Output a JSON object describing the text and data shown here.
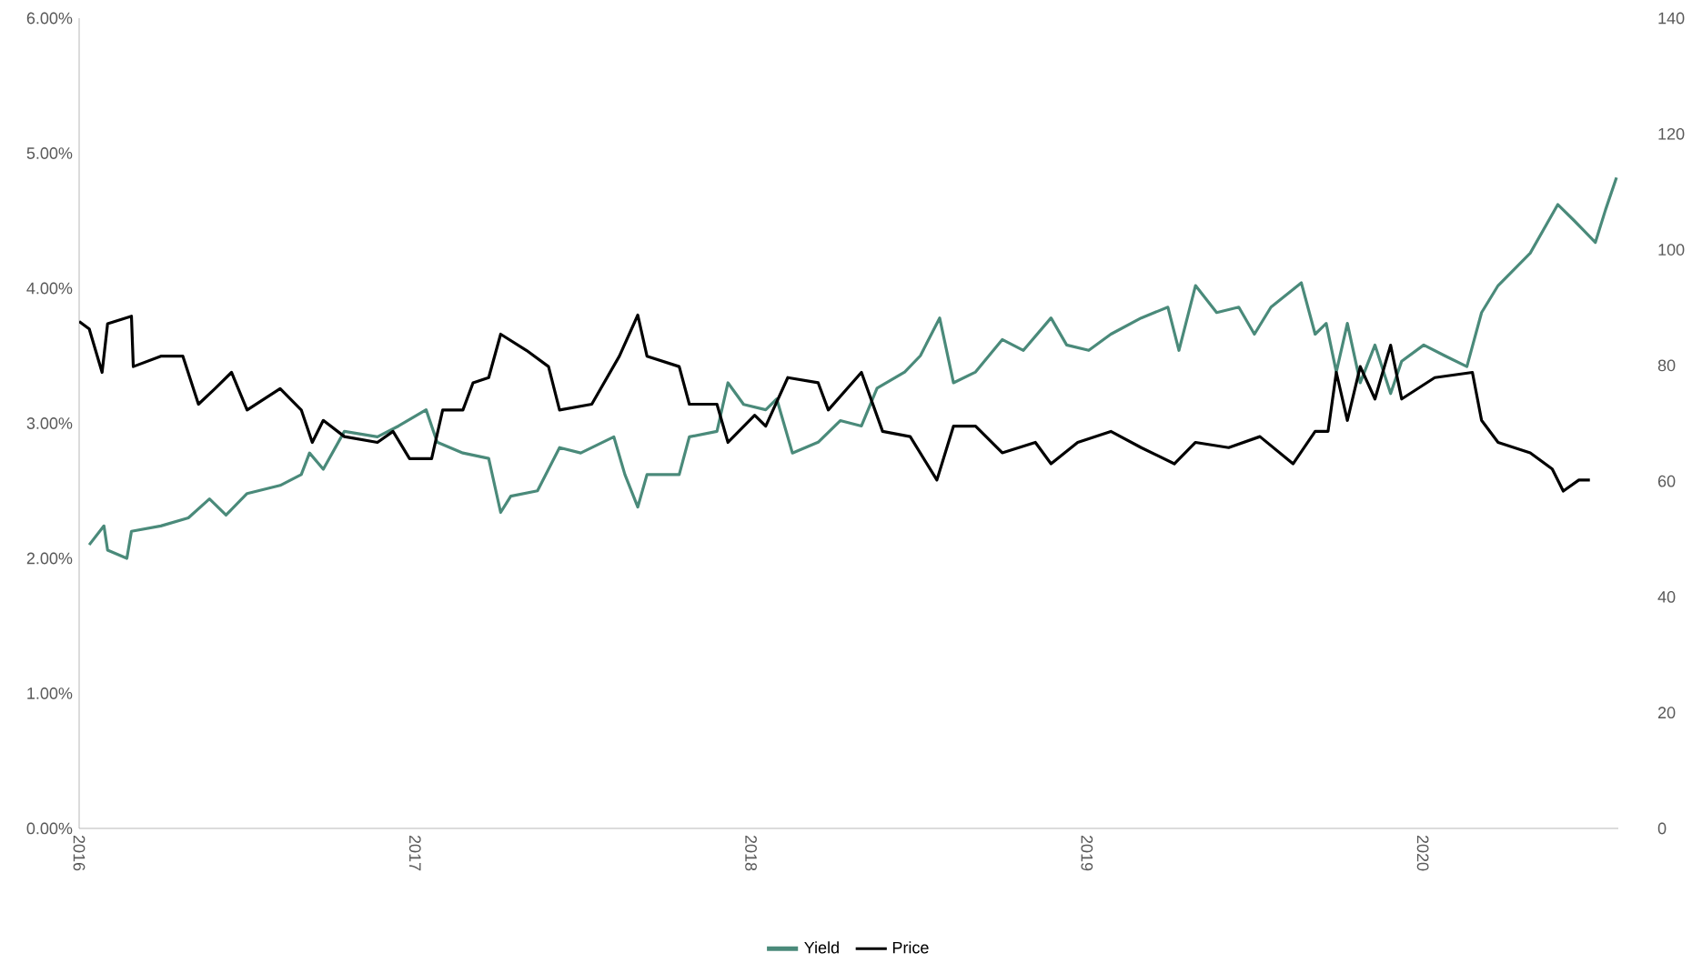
{
  "chart_data": {
    "type": "line",
    "xlim": [
      "2016-01-01",
      "2020-08-01"
    ],
    "xticks": [
      {
        "value": "2016-01-01",
        "label": "2016"
      },
      {
        "value": "2017-01-01",
        "label": "2017"
      },
      {
        "value": "2018-01-01",
        "label": "2018"
      },
      {
        "value": "2019-01-01",
        "label": "2019"
      },
      {
        "value": "2020-01-01",
        "label": "2020"
      }
    ],
    "ylim": [
      0,
      6
    ],
    "yticks": [
      {
        "value": 0,
        "label": "0.00%"
      },
      {
        "value": 1,
        "label": "1.00%"
      },
      {
        "value": 2,
        "label": "2.00%"
      },
      {
        "value": 3,
        "label": "3.00%"
      },
      {
        "value": 4,
        "label": "4.00%"
      },
      {
        "value": 5,
        "label": "5.00%"
      },
      {
        "value": 6,
        "label": "6.00%"
      }
    ],
    "y2lim": [
      0,
      140
    ],
    "y2ticks": [
      0,
      20,
      40,
      60,
      80,
      100,
      120,
      140
    ],
    "legend": "bottom",
    "series": [
      {
        "name": "Yield",
        "color": "#4a8a7a",
        "x": [
          "2016-01-12",
          "2016-01-28",
          "2016-02-01",
          "2016-02-22",
          "2016-02-27",
          "2016-03-30",
          "2016-04-29",
          "2016-05-22",
          "2016-06-09",
          "2016-07-02",
          "2016-08-07",
          "2016-08-30",
          "2016-09-08",
          "2016-09-23",
          "2016-10-16",
          "2016-11-21",
          "2016-12-14",
          "2017-01-13",
          "2017-01-25",
          "2017-02-22",
          "2017-03-22",
          "2017-04-04",
          "2017-04-15",
          "2017-05-14",
          "2017-06-07",
          "2017-06-30",
          "2017-08-05",
          "2017-08-17",
          "2017-08-31",
          "2017-09-10",
          "2017-10-15",
          "2017-10-26",
          "2017-11-25",
          "2017-12-07",
          "2017-12-24",
          "2018-01-17",
          "2018-01-29",
          "2018-02-15",
          "2018-03-15",
          "2018-04-08",
          "2018-05-01",
          "2018-05-18",
          "2018-06-17",
          "2018-07-04",
          "2018-07-25",
          "2018-08-09",
          "2018-09-02",
          "2018-10-01",
          "2018-10-24",
          "2018-11-23",
          "2018-12-10",
          "2019-01-03",
          "2019-01-27",
          "2019-03-01",
          "2019-03-30",
          "2019-04-11",
          "2019-04-29",
          "2019-05-22",
          "2019-06-15",
          "2019-07-02",
          "2019-07-20",
          "2019-08-22",
          "2019-09-06",
          "2019-09-18",
          "2019-09-29",
          "2019-10-11",
          "2019-10-25",
          "2019-11-10",
          "2019-11-27",
          "2019-12-09",
          "2020-01-02",
          "2020-01-25",
          "2020-02-18",
          "2020-03-05",
          "2020-03-23",
          "2020-04-27",
          "2020-05-27",
          "2020-06-14",
          "2020-07-07",
          "2020-07-18",
          "2020-07-30"
        ],
        "values": [
          2.1,
          2.24,
          2.06,
          2.0,
          2.2,
          2.24,
          2.3,
          2.44,
          2.32,
          2.48,
          2.54,
          2.62,
          2.78,
          2.66,
          2.94,
          2.9,
          2.98,
          3.1,
          2.86,
          2.78,
          2.74,
          2.34,
          2.46,
          2.5,
          2.82,
          2.78,
          2.9,
          2.62,
          2.38,
          2.62,
          2.62,
          2.9,
          2.94,
          3.3,
          3.14,
          3.1,
          3.18,
          2.78,
          2.86,
          3.02,
          2.98,
          3.26,
          3.38,
          3.5,
          3.78,
          3.3,
          3.38,
          3.62,
          3.54,
          3.78,
          3.58,
          3.54,
          3.66,
          3.78,
          3.86,
          3.54,
          4.02,
          3.82,
          3.86,
          3.66,
          3.86,
          4.04,
          3.66,
          3.74,
          3.38,
          3.74,
          3.3,
          3.58,
          3.22,
          3.46,
          3.58,
          3.5,
          3.42,
          3.82,
          4.02,
          4.26,
          4.62,
          4.5,
          4.34,
          4.58,
          4.82
        ]
      },
      {
        "name": "Price",
        "color": "#000000",
        "axis": "y2",
        "x": [
          "2016-01-01",
          "2016-01-12",
          "2016-01-26",
          "2016-02-01",
          "2016-02-27",
          "2016-02-29",
          "2016-03-30",
          "2016-04-23",
          "2016-05-10",
          "2016-05-28",
          "2016-06-15",
          "2016-07-02",
          "2016-08-07",
          "2016-08-30",
          "2016-09-11",
          "2016-09-23",
          "2016-10-16",
          "2016-11-21",
          "2016-12-08",
          "2016-12-26",
          "2017-01-19",
          "2017-01-31",
          "2017-02-22",
          "2017-03-05",
          "2017-03-22",
          "2017-04-04",
          "2017-05-02",
          "2017-05-26",
          "2017-06-07",
          "2017-07-12",
          "2017-08-11",
          "2017-08-31",
          "2017-09-10",
          "2017-10-15",
          "2017-10-26",
          "2017-11-25",
          "2017-12-07",
          "2018-01-05",
          "2018-01-17",
          "2018-02-10",
          "2018-03-15",
          "2018-03-26",
          "2018-05-01",
          "2018-05-24",
          "2018-06-23",
          "2018-07-22",
          "2018-08-09",
          "2018-09-02",
          "2018-10-01",
          "2018-11-06",
          "2018-11-23",
          "2018-12-22",
          "2019-01-27",
          "2019-03-01",
          "2019-04-06",
          "2019-04-29",
          "2019-06-04",
          "2019-07-08",
          "2019-08-13",
          "2019-09-06",
          "2019-09-20",
          "2019-09-29",
          "2019-10-11",
          "2019-10-25",
          "2019-11-10",
          "2019-11-27",
          "2019-12-09",
          "2020-01-14",
          "2020-02-24",
          "2020-03-05",
          "2020-03-23",
          "2020-04-27",
          "2020-05-21",
          "2020-06-02",
          "2020-06-19",
          "2020-07-01"
        ],
        "values": [
          87.6,
          86.3,
          78.8,
          87.2,
          88.5,
          79.8,
          81.6,
          81.6,
          73.3,
          76.0,
          78.8,
          72.3,
          76.0,
          72.3,
          66.7,
          70.5,
          67.7,
          66.7,
          68.6,
          63.9,
          63.9,
          72.3,
          72.3,
          77.0,
          77.9,
          85.4,
          82.6,
          79.8,
          72.3,
          73.3,
          81.6,
          88.7,
          81.6,
          79.8,
          73.3,
          73.3,
          66.7,
          71.4,
          69.5,
          77.9,
          77.0,
          72.3,
          78.8,
          68.6,
          67.7,
          60.2,
          69.5,
          69.5,
          64.9,
          66.7,
          63.0,
          66.7,
          68.6,
          65.8,
          63.0,
          66.7,
          65.8,
          67.7,
          63.0,
          68.6,
          68.6,
          78.8,
          70.5,
          79.8,
          74.2,
          83.5,
          74.2,
          77.9,
          78.8,
          70.5,
          66.7,
          64.9,
          62.1,
          58.3,
          60.2,
          60.2
        ]
      }
    ]
  }
}
